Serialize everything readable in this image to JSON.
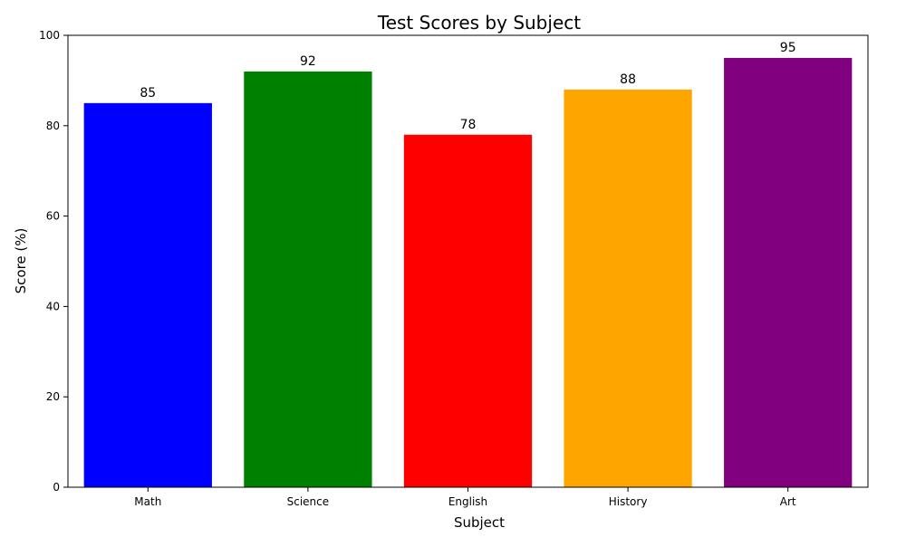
{
  "chart_data": {
    "type": "bar",
    "title": "Test Scores by Subject",
    "xlabel": "Subject",
    "ylabel": "Score (%)",
    "categories": [
      "Math",
      "Science",
      "English",
      "History",
      "Art"
    ],
    "values": [
      85,
      92,
      78,
      88,
      95
    ],
    "colors": [
      "#0000ff",
      "#008000",
      "#ff0000",
      "#ffa500",
      "#800080"
    ],
    "ylim": [
      0,
      100
    ],
    "yticks": [
      0,
      20,
      40,
      60,
      80,
      100
    ],
    "grid": false,
    "legend": "none",
    "data_labels": true
  }
}
